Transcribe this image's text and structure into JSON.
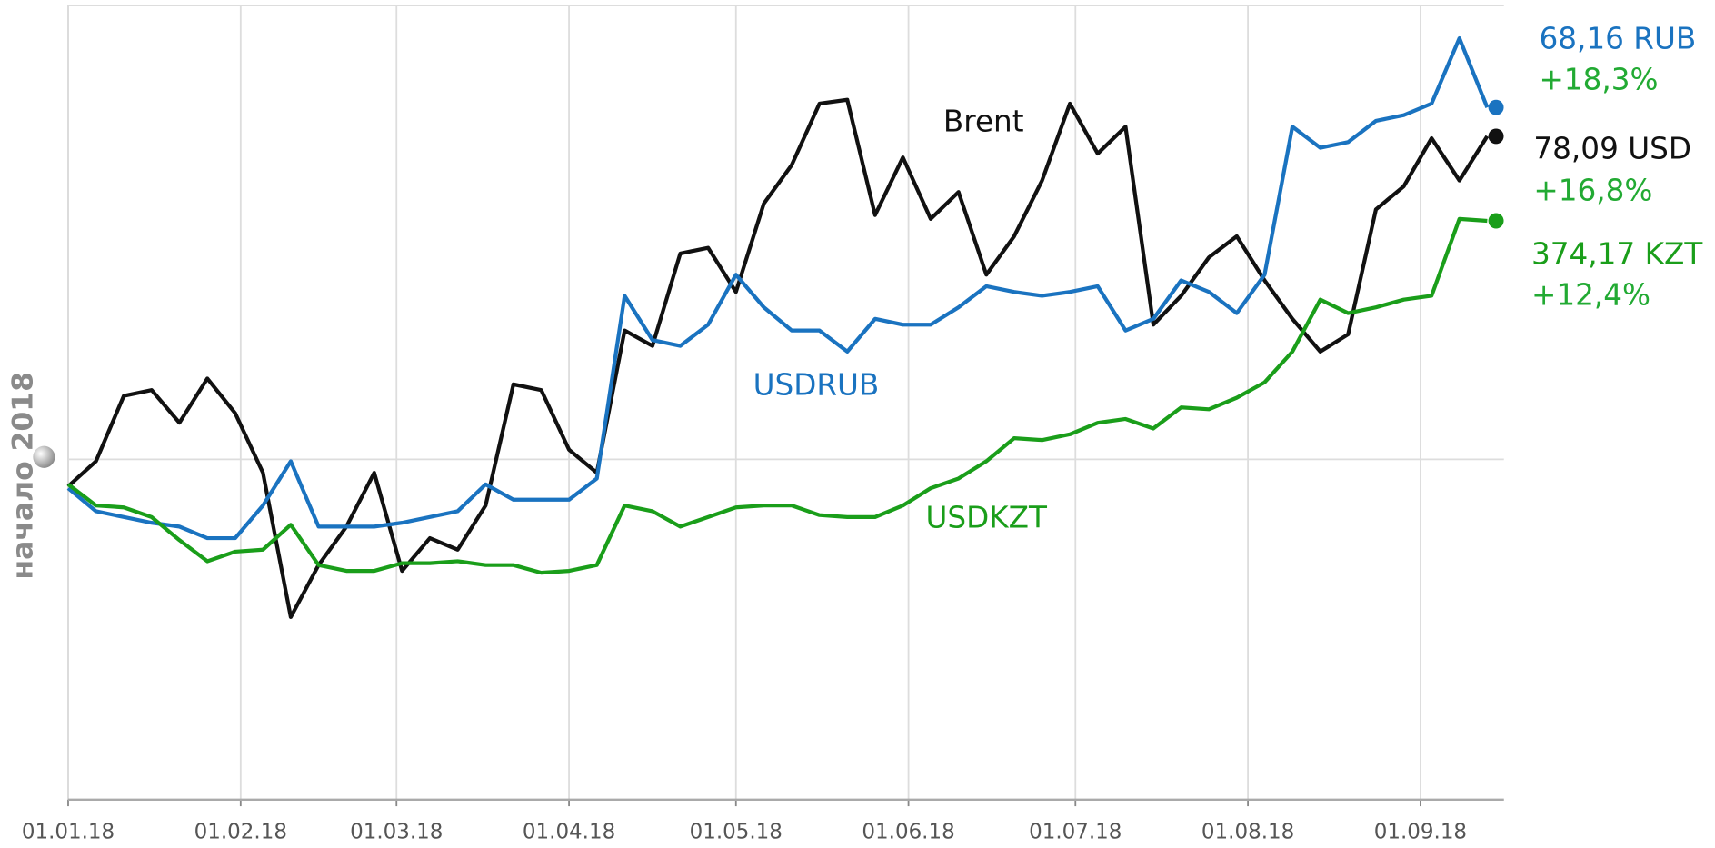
{
  "chart_data": {
    "type": "line",
    "baseline_label": "начало 2018",
    "x": [
      "01.01.18",
      "06.01.18",
      "11.01.18",
      "16.01.18",
      "21.01.18",
      "26.01.18",
      "31.01.18",
      "05.02.18",
      "10.02.18",
      "15.02.18",
      "20.02.18",
      "25.02.18",
      "02.03.18",
      "07.03.18",
      "12.03.18",
      "17.03.18",
      "22.03.18",
      "27.03.18",
      "01.04.18",
      "06.04.18",
      "11.04.18",
      "16.04.18",
      "21.04.18",
      "26.04.18",
      "01.05.18",
      "06.05.18",
      "11.05.18",
      "16.05.18",
      "21.05.18",
      "26.05.18",
      "31.05.18",
      "05.06.18",
      "10.06.18",
      "15.06.18",
      "20.06.18",
      "25.06.18",
      "30.06.18",
      "05.07.18",
      "10.07.18",
      "15.07.18",
      "20.07.18",
      "25.07.18",
      "30.07.18",
      "04.08.18",
      "09.08.18",
      "14.08.18",
      "19.08.18",
      "24.08.18",
      "29.08.18",
      "03.09.18",
      "08.09.18",
      "13.09.18"
    ],
    "xlim": [
      "01.01.18",
      "16.09.18"
    ],
    "xticks": [
      "01.01.18",
      "01.02.18",
      "01.03.18",
      "01.04.18",
      "01.05.18",
      "01.06.18",
      "01.07.18",
      "01.08.18",
      "01.09.18"
    ],
    "ylim": [
      -17.7,
      23.6
    ],
    "yticks": [
      0
    ],
    "grid": true,
    "series": [
      {
        "name": "Brent",
        "color": "#111111",
        "price": "78,09 USD",
        "change": "+16,8%",
        "values": [
          -1.4,
          -0.1,
          3.3,
          3.6,
          1.9,
          4.2,
          2.4,
          -0.7,
          -8.2,
          -5.5,
          -3.5,
          -0.7,
          -5.8,
          -4.1,
          -4.7,
          -2.4,
          3.9,
          3.6,
          0.5,
          -0.7,
          6.7,
          5.9,
          10.7,
          11.0,
          8.7,
          13.3,
          15.3,
          18.5,
          18.7,
          12.7,
          15.7,
          12.5,
          13.9,
          9.6,
          11.6,
          14.5,
          18.5,
          15.9,
          17.3,
          7.0,
          8.5,
          10.5,
          11.6,
          9.3,
          7.3,
          5.6,
          6.5,
          13.0,
          14.2,
          16.7,
          14.5,
          16.8
        ]
      },
      {
        "name": "USDRUB",
        "color": "#1a73c0",
        "price": "68,16 RUB",
        "change": "+18,3%",
        "values": [
          -1.5,
          -2.7,
          -3.0,
          -3.3,
          -3.5,
          -4.1,
          -4.1,
          -2.4,
          -0.1,
          -3.5,
          -3.5,
          -3.5,
          -3.3,
          -3.0,
          -2.7,
          -1.3,
          -2.1,
          -2.1,
          -2.1,
          -1.0,
          8.5,
          6.2,
          5.9,
          7.0,
          9.6,
          7.9,
          6.7,
          6.7,
          5.6,
          7.3,
          7.0,
          7.0,
          7.9,
          9.0,
          8.7,
          8.5,
          8.7,
          9.0,
          6.7,
          7.3,
          9.3,
          8.7,
          7.6,
          9.6,
          17.3,
          16.2,
          16.5,
          17.6,
          17.9,
          18.5,
          21.9,
          18.3
        ]
      },
      {
        "name": "USDKZT",
        "color": "#1a9e1a",
        "price": "374,17 KZT",
        "change": "+12,4%",
        "values": [
          -1.3,
          -2.4,
          -2.5,
          -3.0,
          -4.2,
          -5.3,
          -4.8,
          -4.7,
          -3.4,
          -5.5,
          -5.8,
          -5.8,
          -5.4,
          -5.4,
          -5.3,
          -5.5,
          -5.5,
          -5.9,
          -5.8,
          -5.5,
          -2.4,
          -2.7,
          -3.5,
          -3.0,
          -2.5,
          -2.4,
          -2.4,
          -2.9,
          -3.0,
          -3.0,
          -2.4,
          -1.5,
          -1.0,
          -0.1,
          1.1,
          1.0,
          1.3,
          1.9,
          2.1,
          1.6,
          2.7,
          2.6,
          3.2,
          4.0,
          5.6,
          8.3,
          7.6,
          7.9,
          8.3,
          8.5,
          12.5,
          12.4
        ]
      }
    ]
  }
}
